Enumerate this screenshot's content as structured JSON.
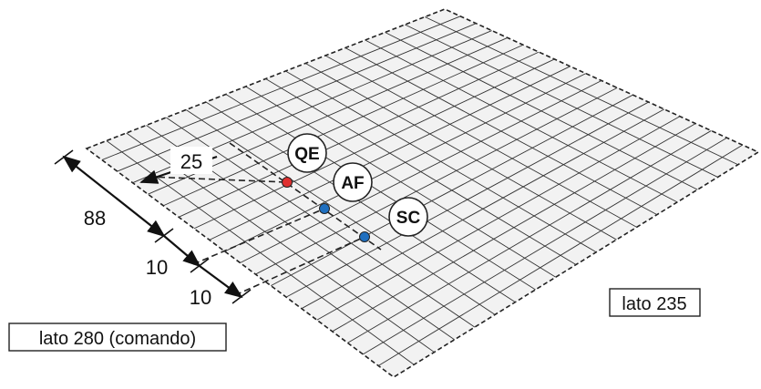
{
  "dimensions": {
    "offset_value": "25",
    "length_value": "88",
    "step_1": "10",
    "step_2": "10"
  },
  "markers": [
    {
      "label": "QE",
      "dot_color": "#e03030"
    },
    {
      "label": "AF",
      "dot_color": "#1f6fbf"
    },
    {
      "label": "SC",
      "dot_color": "#1f6fbf"
    }
  ],
  "sides": {
    "command_side": "lato 280 (comando)",
    "other_side": "lato 235"
  },
  "colors": {
    "grid_fill": "#f2f2f2",
    "grid_line": "#333333"
  }
}
